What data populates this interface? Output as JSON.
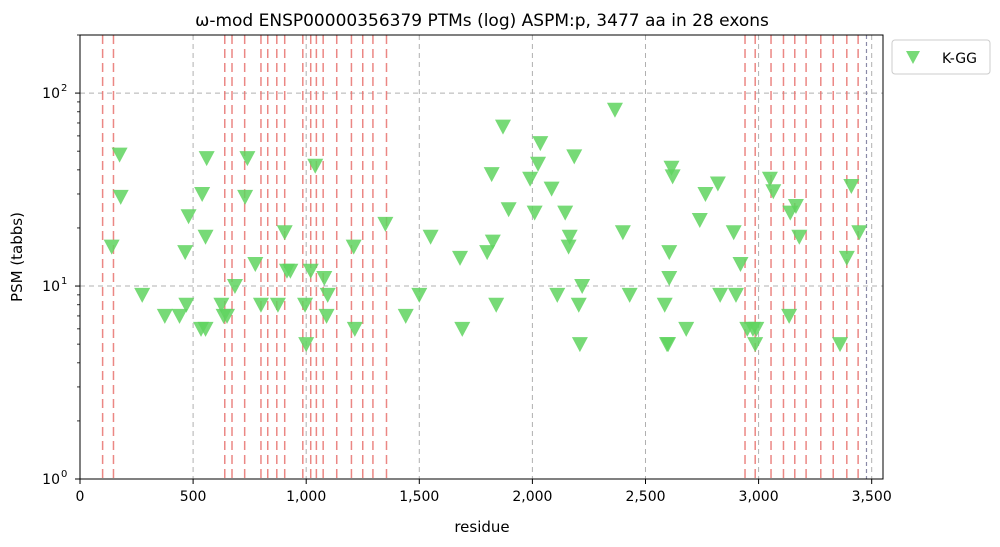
{
  "chart_data": {
    "type": "scatter",
    "title": "ω-mod ENSP00000356379 PTMs (log) ASPM:p, 3477 aa in 28 exons",
    "xlabel": "residue",
    "ylabel": "PSM (tabbs)",
    "xlim": [
      0,
      3550
    ],
    "ylim": [
      1,
      200
    ],
    "yscale": "log",
    "grid": true,
    "legend_position": "outside-top-right",
    "xticks": [
      0,
      500,
      1000,
      1500,
      2000,
      2500,
      3000,
      3500
    ],
    "xtick_labels": [
      "0",
      "500",
      "1,000",
      "1,500",
      "2,000",
      "2,500",
      "3,000",
      "3,500"
    ],
    "yticks": [
      1,
      10,
      100
    ],
    "ytick_labels": [
      [
        "10",
        "0"
      ],
      [
        "10",
        "1"
      ],
      [
        "10",
        "2"
      ]
    ],
    "exon_boundaries": [
      100,
      148,
      640,
      672,
      728,
      800,
      830,
      870,
      905,
      985,
      1020,
      1045,
      1075,
      1135,
      1200,
      1250,
      1295,
      1355,
      2940,
      2985,
      3055,
      3110,
      3160,
      3210,
      3275,
      3330,
      3390,
      3440
    ],
    "protein_length": 3477,
    "series": [
      {
        "name": "K-GG",
        "marker": "triangle-down",
        "color": "#5fd35f",
        "points": [
          [
            140,
            16
          ],
          [
            175,
            48
          ],
          [
            180,
            29
          ],
          [
            275,
            9
          ],
          [
            375,
            7
          ],
          [
            440,
            7
          ],
          [
            465,
            15
          ],
          [
            470,
            8
          ],
          [
            480,
            23
          ],
          [
            535,
            6
          ],
          [
            540,
            30
          ],
          [
            555,
            18
          ],
          [
            555,
            6
          ],
          [
            560,
            46
          ],
          [
            625,
            8
          ],
          [
            635,
            7
          ],
          [
            650,
            7
          ],
          [
            685,
            10
          ],
          [
            730,
            29
          ],
          [
            740,
            46
          ],
          [
            775,
            13
          ],
          [
            800,
            8
          ],
          [
            875,
            8
          ],
          [
            905,
            19
          ],
          [
            915,
            12
          ],
          [
            930,
            12
          ],
          [
            995,
            8
          ],
          [
            1000,
            5
          ],
          [
            1020,
            12
          ],
          [
            1040,
            42
          ],
          [
            1080,
            11
          ],
          [
            1090,
            7
          ],
          [
            1095,
            9
          ],
          [
            1210,
            16
          ],
          [
            1215,
            6
          ],
          [
            1350,
            21
          ],
          [
            1440,
            7
          ],
          [
            1500,
            9
          ],
          [
            1550,
            18
          ],
          [
            1680,
            14
          ],
          [
            1690,
            6
          ],
          [
            1800,
            15
          ],
          [
            1820,
            38
          ],
          [
            1825,
            17
          ],
          [
            1840,
            8
          ],
          [
            1870,
            67
          ],
          [
            1895,
            25
          ],
          [
            1990,
            36
          ],
          [
            2010,
            24
          ],
          [
            2025,
            43
          ],
          [
            2035,
            55
          ],
          [
            2085,
            32
          ],
          [
            2110,
            9
          ],
          [
            2145,
            24
          ],
          [
            2160,
            16
          ],
          [
            2165,
            18
          ],
          [
            2185,
            47
          ],
          [
            2205,
            8
          ],
          [
            2210,
            5
          ],
          [
            2220,
            10
          ],
          [
            2365,
            82
          ],
          [
            2400,
            19
          ],
          [
            2430,
            9
          ],
          [
            2585,
            8
          ],
          [
            2595,
            5
          ],
          [
            2600,
            5
          ],
          [
            2605,
            15
          ],
          [
            2605,
            11
          ],
          [
            2615,
            41
          ],
          [
            2620,
            37
          ],
          [
            2680,
            6
          ],
          [
            2740,
            22
          ],
          [
            2765,
            30
          ],
          [
            2820,
            34
          ],
          [
            2830,
            9
          ],
          [
            2890,
            19
          ],
          [
            2900,
            9
          ],
          [
            2920,
            13
          ],
          [
            2950,
            6
          ],
          [
            2975,
            6
          ],
          [
            2985,
            5
          ],
          [
            2990,
            6
          ],
          [
            3050,
            36
          ],
          [
            3065,
            31
          ],
          [
            3135,
            7
          ],
          [
            3140,
            24
          ],
          [
            3165,
            26
          ],
          [
            3180,
            18
          ],
          [
            3360,
            5
          ],
          [
            3390,
            14
          ],
          [
            3410,
            33
          ],
          [
            3445,
            19
          ]
        ]
      }
    ]
  }
}
